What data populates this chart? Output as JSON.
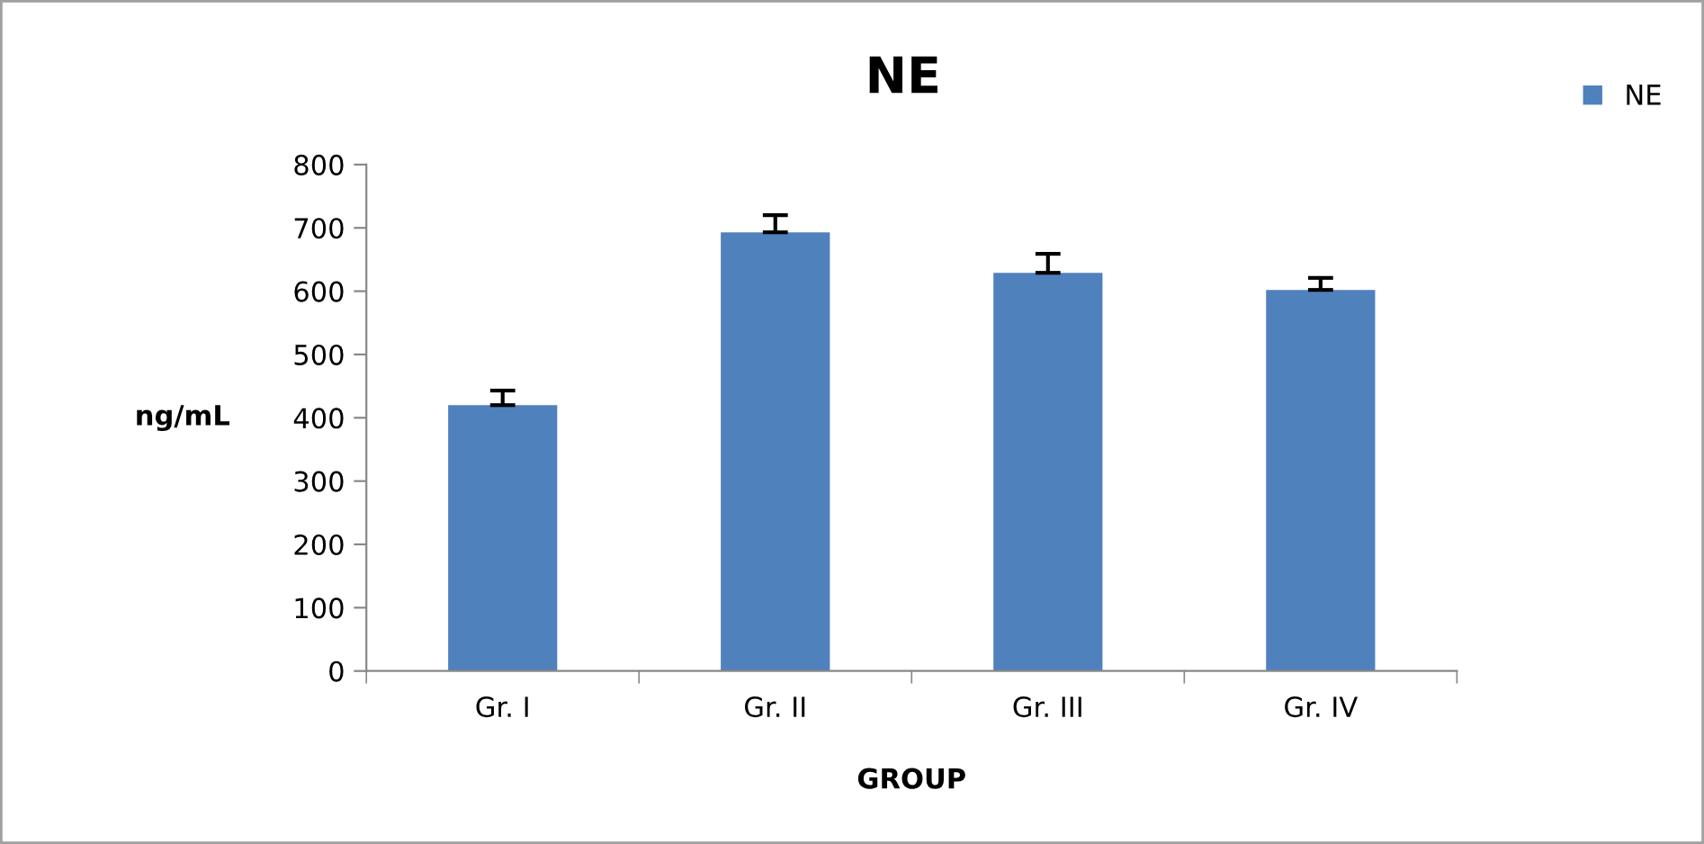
{
  "chart_data": {
    "type": "bar",
    "title": "NE",
    "xlabel": "GROUP",
    "ylabel": "ng/mL",
    "categories": [
      "Gr. I",
      "Gr. II",
      "Gr. III",
      "Gr. IV"
    ],
    "series": [
      {
        "name": "NE",
        "color": "#4f81bd",
        "values": [
          420,
          693,
          629,
          602
        ],
        "errors": [
          [
            420,
            443
          ],
          [
            693,
            720
          ],
          [
            629,
            659
          ],
          [
            602,
            621
          ]
        ]
      }
    ],
    "ylim": [
      0,
      800
    ],
    "yticks": [
      0,
      100,
      200,
      300,
      400,
      500,
      600,
      700,
      800
    ],
    "grid": false,
    "legend": "top right"
  }
}
